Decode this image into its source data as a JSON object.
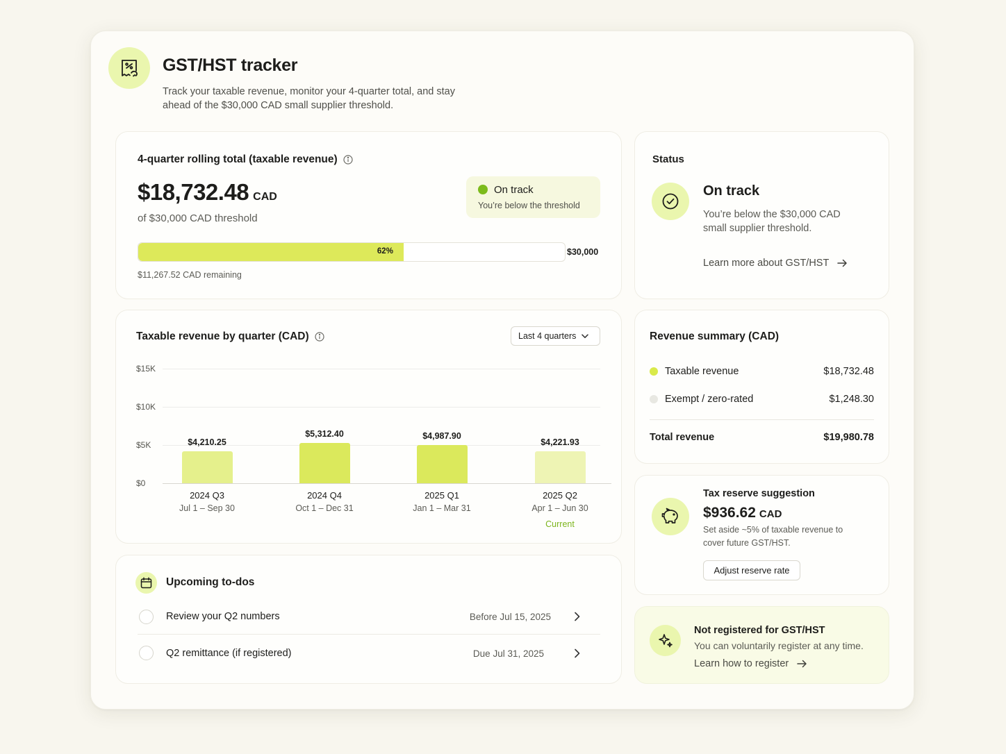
{
  "header": {
    "icon": "receipt-percent-icon",
    "title": "GST/HST tracker",
    "subtitle": "Track your taxable revenue, monitor your 4-quarter total, and stay ahead of the $30,000 CAD small supplier threshold."
  },
  "rolling": {
    "title": "4-quarter rolling total (taxable revenue)",
    "amount": "$18,732.48",
    "currency": "CAD",
    "threshold_text": "of $30,000 CAD threshold",
    "status_label": "On track",
    "status_sub": "You’re below the threshold",
    "progress_percent": 62,
    "progress_label": "62%",
    "threshold_label": "$30,000",
    "remaining": "$11,267.52 CAD remaining"
  },
  "status": {
    "heading": "Status",
    "title": "On track",
    "description": "You’re below the $30,000 CAD small supplier threshold.",
    "link": "Learn more about GST/HST"
  },
  "chart": {
    "title": "Taxable revenue by quarter (CAD)",
    "range_select": "Last 4 quarters",
    "current_label": "Current"
  },
  "chart_data": {
    "type": "bar",
    "categories": [
      "2024 Q3",
      "2024 Q4",
      "2025 Q1",
      "2025 Q2"
    ],
    "category_dates": [
      "Jul 1 – Sep 30",
      "Oct 1 – Dec 31",
      "Jan 1 – Mar 31",
      "Apr 1 – Jun 30"
    ],
    "values": [
      4210.25,
      5312.4,
      4987.9,
      4221.93
    ],
    "value_labels": [
      "$4,210.25",
      "$5,312.40",
      "$4,987.90",
      "$4,221.93"
    ],
    "y_ticks": [
      "$0",
      "$5K",
      "$10K",
      "$15K"
    ],
    "y_tick_values": [
      0,
      5000,
      10000,
      15000
    ],
    "ylim": [
      0,
      15000
    ],
    "grid": true,
    "colors": [
      "#e5f08c",
      "#dbe95c",
      "#dbe95c",
      "#eef4b4"
    ]
  },
  "summary": {
    "title": "Revenue summary (CAD)",
    "rows": [
      {
        "label": "Taxable revenue",
        "value": "$18,732.48",
        "color": "#d9ea4a"
      },
      {
        "label": "Exempt / zero-rated",
        "value": "$1,248.30",
        "color": "#e8e8e2"
      }
    ],
    "total_label": "Total revenue",
    "total_value": "$19,980.78"
  },
  "reserve": {
    "title": "Tax reserve suggestion",
    "amount": "$936.62",
    "currency": "CAD",
    "description": "Set aside ~5% of taxable revenue to cover future GST/HST.",
    "button": "Adjust reserve rate"
  },
  "todos": {
    "title": "Upcoming to-dos",
    "items": [
      {
        "label": "Review your Q2 numbers",
        "due": "Before Jul 15, 2025"
      },
      {
        "label": "Q2 remittance (if registered)",
        "due": "Due Jul 31, 2025"
      }
    ]
  },
  "register": {
    "title": "Not registered for GST/HST",
    "description": "You can voluntarily register at any time.",
    "link": "Learn how to register"
  },
  "colors": {
    "accent": "#dbe95c",
    "accent_soft": "#eaf6ae",
    "success": "#7cbb1c",
    "background": "#f8f6ee"
  }
}
